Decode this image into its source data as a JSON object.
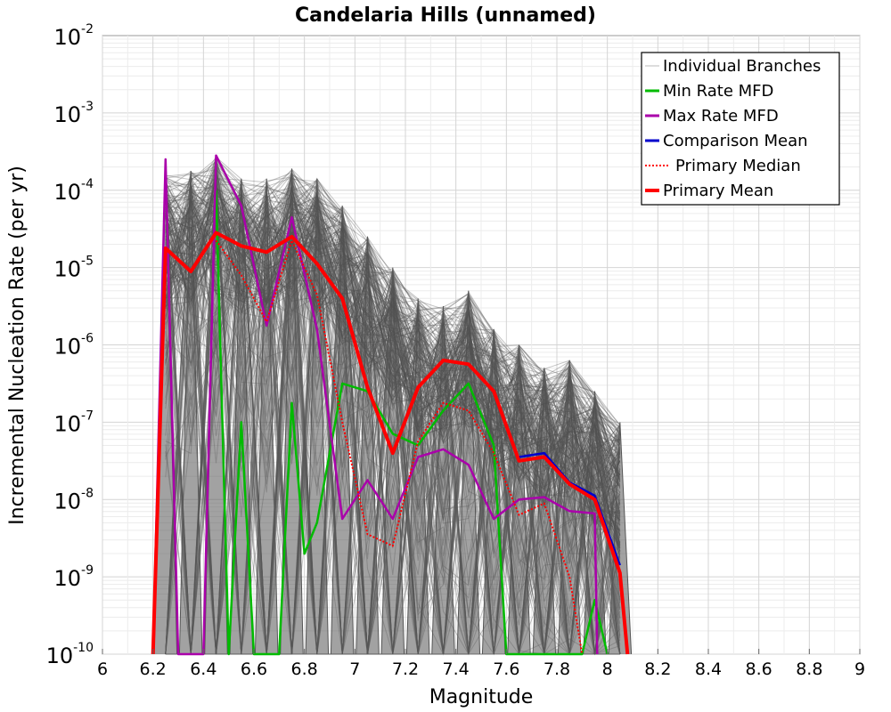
{
  "chart_data": {
    "type": "line",
    "title": "Candelaria Hills (unnamed)",
    "xlabel": "Magnitude",
    "ylabel": "Incremental Nucleation Rate (per yr)",
    "xlim": [
      6,
      9
    ],
    "ylim_log10": [
      -10,
      -2
    ],
    "yscale": "log",
    "grid": true,
    "legend_position": "top-right",
    "x_ticks": [
      "6",
      "6.2",
      "6.4",
      "6.6",
      "6.8",
      "7",
      "7.2",
      "7.4",
      "7.6",
      "7.8",
      "8",
      "8.2",
      "8.4",
      "8.6",
      "8.8",
      "9"
    ],
    "y_ticks": [
      {
        "base": "10",
        "exp": "-2"
      },
      {
        "base": "10",
        "exp": "-3"
      },
      {
        "base": "10",
        "exp": "-4"
      },
      {
        "base": "10",
        "exp": "-5"
      },
      {
        "base": "10",
        "exp": "-6"
      },
      {
        "base": "10",
        "exp": "-7"
      },
      {
        "base": "10",
        "exp": "-8"
      },
      {
        "base": "10",
        "exp": "-9"
      },
      {
        "base": "10",
        "exp": "-10"
      }
    ],
    "x": [
      6.25,
      6.35,
      6.45,
      6.55,
      6.65,
      6.75,
      6.85,
      6.95,
      7.05,
      7.15,
      7.25,
      7.35,
      7.45,
      7.55,
      7.65,
      7.75,
      7.85,
      7.95,
      8.05
    ],
    "series": [
      {
        "name": "Individual Branches",
        "color": "#555555",
        "style": "thin",
        "x": [
          6.25,
          6.35,
          6.45,
          6.55,
          6.65,
          6.75,
          6.85,
          6.95,
          7.05,
          7.15,
          7.25,
          7.35,
          7.45,
          7.55,
          7.65,
          7.75,
          7.85,
          7.95,
          8.05
        ],
        "upper_envelope_log10": [
          -3.8,
          -3.75,
          -3.55,
          -3.85,
          -3.85,
          -3.72,
          -3.85,
          -4.2,
          -4.6,
          -5.0,
          -5.4,
          -5.5,
          -5.3,
          -5.8,
          -6.0,
          -6.3,
          -6.2,
          -6.6,
          -7.0
        ],
        "lower_envelope_log10": [
          -10,
          -10,
          -10,
          -10,
          -10,
          -10,
          -10,
          -10,
          -10,
          -10,
          -10,
          -10,
          -10,
          -10,
          -10,
          -10,
          -10,
          -10,
          -10
        ]
      },
      {
        "name": "Min Rate MFD",
        "color": "#00bb00",
        "style": "solid",
        "x": [
          6.45,
          6.5,
          6.55,
          6.6,
          6.65,
          6.7,
          6.75,
          6.8,
          6.85,
          6.95,
          7.05,
          7.15,
          7.25,
          7.35,
          7.45,
          7.55,
          7.6,
          7.65,
          7.7,
          7.75,
          7.8,
          7.85,
          7.9,
          7.95,
          8.0
        ],
        "log10": [
          -4.0,
          -10,
          -7.0,
          -10,
          -10,
          -10,
          -6.75,
          -8.7,
          -8.3,
          -6.5,
          -6.6,
          -7.15,
          -7.3,
          -6.85,
          -6.5,
          -7.3,
          -10,
          -10,
          -10,
          -10,
          -10,
          -10,
          -10,
          -9.3,
          -10
        ]
      },
      {
        "name": "Max Rate MFD",
        "color": "#aa00aa",
        "style": "solid",
        "x": [
          6.2,
          6.25,
          6.3,
          6.35,
          6.4,
          6.45,
          6.55,
          6.65,
          6.75,
          6.85,
          6.95,
          7.05,
          7.15,
          7.25,
          7.35,
          7.45,
          7.55,
          7.65,
          7.75,
          7.85,
          7.95,
          7.96
        ],
        "log10": [
          -10,
          -3.6,
          -10,
          -10,
          -10,
          -3.55,
          -4.2,
          -5.75,
          -4.35,
          -5.8,
          -8.25,
          -7.75,
          -8.25,
          -7.45,
          -7.35,
          -7.55,
          -8.25,
          -8.0,
          -7.97,
          -8.15,
          -8.18,
          -10
        ]
      },
      {
        "name": "Comparison Mean",
        "color": "#0000cc",
        "style": "solid",
        "x": [
          7.65,
          7.75,
          7.85,
          7.95,
          8.05
        ],
        "log10": [
          -7.45,
          -7.4,
          -7.78,
          -7.95,
          -8.85
        ]
      },
      {
        "name": "Primary Median",
        "color": "#ff0000",
        "style": "dotted",
        "x": [
          6.45,
          6.55,
          6.65,
          6.75,
          6.85,
          6.95,
          7.05,
          7.15,
          7.25,
          7.35,
          7.45,
          7.55,
          7.65,
          7.75,
          7.85,
          7.9
        ],
        "log10": [
          -4.65,
          -5.1,
          -5.7,
          -4.65,
          -5.35,
          -7.0,
          -8.45,
          -8.6,
          -7.25,
          -6.75,
          -6.85,
          -7.4,
          -8.2,
          -8.05,
          -9.0,
          -10
        ]
      },
      {
        "name": "Primary Mean",
        "color": "#ff0000",
        "style": "thick",
        "x": [
          6.2,
          6.25,
          6.35,
          6.45,
          6.55,
          6.65,
          6.75,
          6.85,
          6.95,
          7.05,
          7.15,
          7.25,
          7.35,
          7.45,
          7.55,
          7.65,
          7.75,
          7.85,
          7.95,
          8.05,
          8.08
        ],
        "log10": [
          -10,
          -4.75,
          -5.05,
          -4.55,
          -4.72,
          -4.8,
          -4.6,
          -4.95,
          -5.4,
          -6.55,
          -7.4,
          -6.55,
          -6.2,
          -6.25,
          -6.6,
          -7.5,
          -7.45,
          -7.8,
          -8.0,
          -8.95,
          -10
        ]
      }
    ]
  }
}
